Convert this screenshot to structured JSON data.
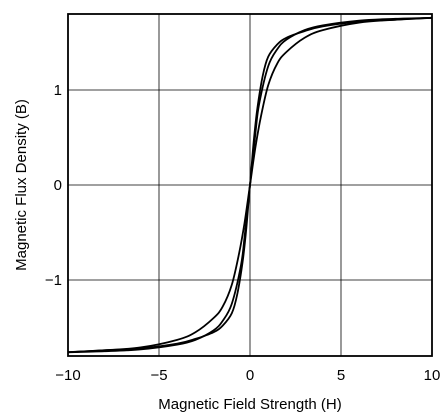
{
  "chart_data": {
    "type": "line",
    "xlabel": "Magnetic Field Strength (H)",
    "ylabel": "Magnetic Flux Density (B)",
    "xlim": [
      -10,
      10
    ],
    "ylim": [
      -1.8,
      1.8
    ],
    "x_ticks": [
      -10,
      -5,
      0,
      5,
      10
    ],
    "x_tick_labels": [
      "−10",
      "−5",
      "0",
      "5",
      "10"
    ],
    "y_ticks": [
      -1,
      0,
      1
    ],
    "y_tick_labels": [
      "−1",
      "0",
      "1"
    ],
    "grid": true,
    "legend": "none",
    "line_color": "#000000",
    "series": [
      {
        "x": [
          -10,
          -8,
          -6,
          -4,
          -3,
          -2,
          -1.5,
          -1,
          -0.6,
          -0.3,
          0,
          0.3,
          0.6,
          1,
          1.5,
          2,
          3,
          4,
          6,
          8,
          10
        ],
        "y": [
          -1.76,
          -1.74,
          -1.71,
          -1.63,
          -1.55,
          -1.4,
          -1.28,
          -1.05,
          -0.72,
          -0.4,
          0.0,
          0.4,
          0.72,
          1.05,
          1.28,
          1.4,
          1.55,
          1.63,
          1.71,
          1.74,
          1.76
        ]
      },
      {
        "x": [
          -10,
          -8,
          -6,
          -4,
          -3,
          -2,
          -1.5,
          -1,
          -0.5,
          -0.3,
          0,
          0.2,
          0.4,
          0.7,
          1,
          1.5,
          2,
          3,
          4,
          6,
          8,
          10
        ],
        "y": [
          -1.76,
          -1.75,
          -1.73,
          -1.68,
          -1.63,
          -1.53,
          -1.43,
          -1.25,
          -0.85,
          -0.55,
          0.0,
          0.45,
          0.8,
          1.15,
          1.35,
          1.48,
          1.55,
          1.62,
          1.67,
          1.72,
          1.74,
          1.76
        ]
      },
      {
        "x": [
          -10,
          -8,
          -6,
          -4,
          -3,
          -2,
          -1.5,
          -1,
          -0.7,
          -0.4,
          -0.2,
          0,
          0.3,
          0.5,
          1,
          1.5,
          2,
          3,
          4,
          6,
          8,
          10
        ],
        "y": [
          -1.76,
          -1.74,
          -1.72,
          -1.67,
          -1.62,
          -1.55,
          -1.48,
          -1.35,
          -1.15,
          -0.8,
          -0.45,
          0.0,
          0.55,
          0.85,
          1.25,
          1.43,
          1.53,
          1.63,
          1.68,
          1.73,
          1.75,
          1.76
        ]
      }
    ]
  }
}
